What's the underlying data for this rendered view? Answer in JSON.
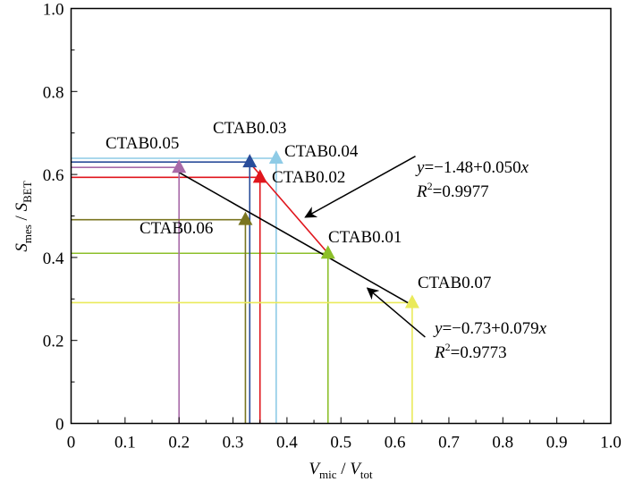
{
  "chart_data": {
    "type": "scatter",
    "xlabel": {
      "main": "V",
      "sub": "mic",
      "sep": " / ",
      "main2": "V",
      "sub2": "tot"
    },
    "ylabel": {
      "main": "S",
      "sub": "mes",
      "sep": " / ",
      "main2": "S",
      "sub2": "BET"
    },
    "xlim": [
      0,
      1.0
    ],
    "ylim": [
      0,
      1.0
    ],
    "xticks": [
      "0",
      "0.1",
      "0.2",
      "0.3",
      "0.4",
      "0.5",
      "0.6",
      "0.7",
      "0.8",
      "0.9",
      "1.0"
    ],
    "yticks": [
      "0",
      "0.2",
      "0.4",
      "0.6",
      "0.8",
      "1.0"
    ],
    "grid": false,
    "points": [
      {
        "name": "CTAB0.01",
        "x": 0.476,
        "y": 0.41,
        "color": "#8cbf2a"
      },
      {
        "name": "CTAB0.02",
        "x": 0.35,
        "y": 0.593,
        "color": "#e0161d"
      },
      {
        "name": "CTAB0.03",
        "x": 0.331,
        "y": 0.63,
        "color": "#2a4d9a"
      },
      {
        "name": "CTAB0.04",
        "x": 0.38,
        "y": 0.639,
        "color": "#8ecbe6"
      },
      {
        "name": "CTAB0.05",
        "x": 0.2,
        "y": 0.617,
        "color": "#a86aa8"
      },
      {
        "name": "CTAB0.06",
        "x": 0.323,
        "y": 0.491,
        "color": "#7a7520"
      },
      {
        "name": "CTAB0.07",
        "x": 0.632,
        "y": 0.291,
        "color": "#eaea5a"
      }
    ],
    "fits": [
      {
        "name": "fit-red",
        "from": [
          0.331,
          0.628
        ],
        "to": [
          0.476,
          0.41
        ],
        "color": "#e0161d",
        "equation": {
          "y": "y",
          "rest": "=−1.48+0.050",
          "x": "x"
        },
        "r2": {
          "R": "R",
          "sup": "2",
          "rest": "=0.9977"
        },
        "arrow_from": [
          0.638,
          0.644
        ],
        "arrow_to": [
          0.434,
          0.497
        ]
      },
      {
        "name": "fit-black",
        "from": [
          0.2,
          0.605
        ],
        "to": [
          0.632,
          0.285
        ],
        "color": "#000000",
        "equation": {
          "y": "y",
          "rest": "=−0.73+0.079",
          "x": "x"
        },
        "r2": {
          "R": "R",
          "sup": "2",
          "rest": "=0.9773"
        },
        "arrow_from": [
          0.656,
          0.208
        ],
        "arrow_to": [
          0.549,
          0.326
        ]
      }
    ]
  }
}
